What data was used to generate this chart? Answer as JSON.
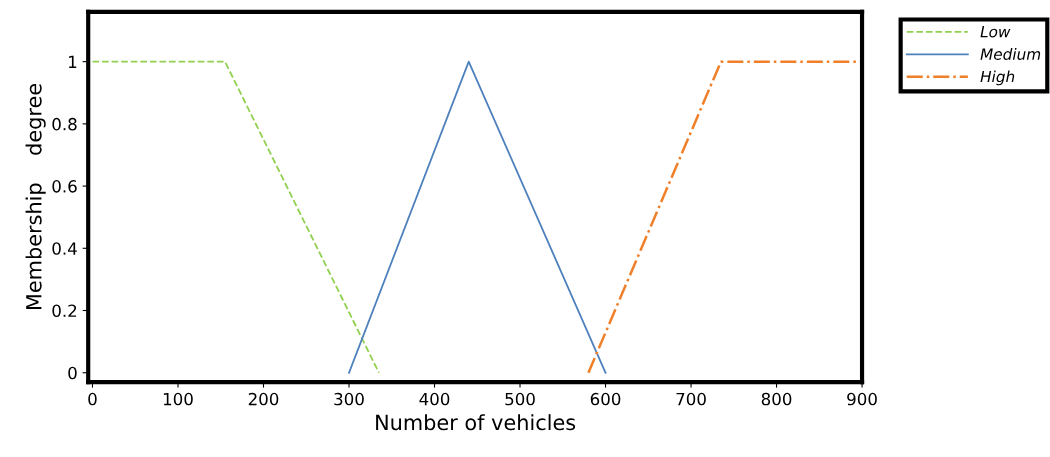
{
  "chart_data": {
    "type": "line",
    "xlabel": "Number of vehicles",
    "ylabel": "Membership    degree",
    "xlim": [
      -5,
      900
    ],
    "ylim": [
      -0.03,
      1.16
    ],
    "xticks": [
      0,
      100,
      200,
      300,
      400,
      500,
      600,
      700,
      800,
      900
    ],
    "yticks": [
      {
        "value": 0,
        "label": "0"
      },
      0.2,
      0.4,
      0.6,
      0.8,
      {
        "value": 1,
        "label": "1"
      }
    ],
    "grid": false,
    "legend": "top right",
    "marker": "none",
    "series": [
      {
        "name": "Low",
        "color": "#92d050",
        "line_style": "dashed",
        "x": [
          0,
          155,
          335
        ],
        "values": [
          1,
          1,
          0
        ]
      },
      {
        "name": "Medium",
        "color": "#4f81bd",
        "line_style": "solid",
        "x": [
          300,
          440,
          600
        ],
        "values": [
          0,
          1,
          0
        ]
      },
      {
        "name": "High",
        "color": "#f07f2a",
        "line_style": "dashdot",
        "x": [
          580,
          735,
          900
        ],
        "values": [
          0,
          1,
          1
        ]
      }
    ]
  }
}
